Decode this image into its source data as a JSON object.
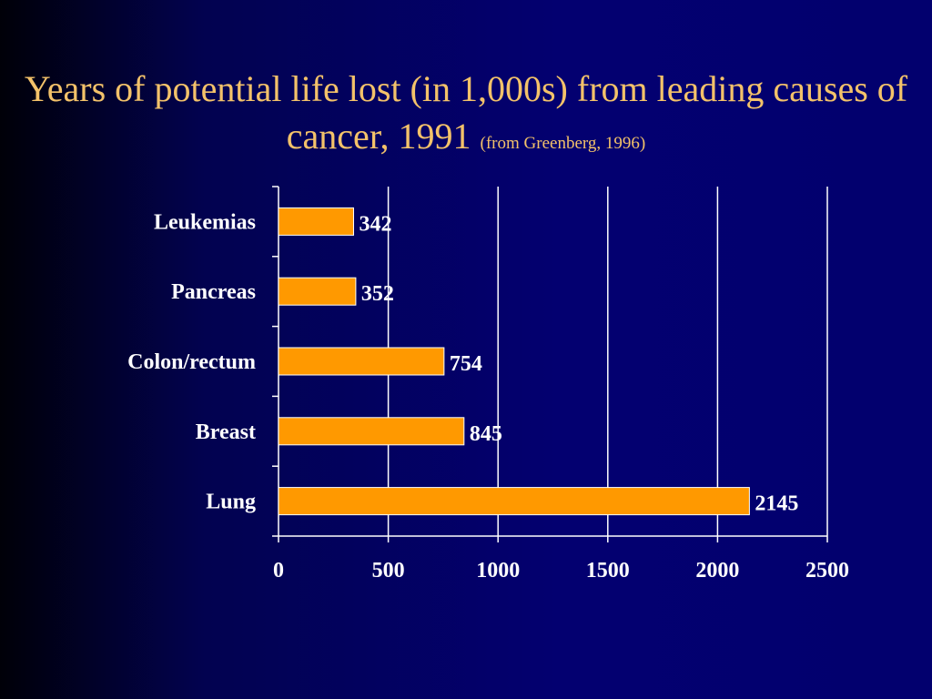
{
  "slide": {
    "title": "Years of potential life lost (in 1,000s) from leading causes of cancer, 1991",
    "source_note": "(from Greenberg, 1996)"
  },
  "colors": {
    "background": "#02006e",
    "title": "#f3c26a",
    "bar_fill": "#ff9900",
    "bar_stroke": "#ffffff",
    "gridline": "#ffffff",
    "text": "#ffffff"
  },
  "chart_data": {
    "type": "bar",
    "orientation": "horizontal",
    "title": "Years of potential life lost (in 1,000s) from leading causes of cancer, 1991",
    "subtitle": "(from Greenberg, 1996)",
    "categories": [
      "Leukemias",
      "Pancreas",
      "Colon/rectum",
      "Breast",
      "Lung"
    ],
    "values": [
      342,
      352,
      754,
      845,
      2145
    ],
    "data_labels": [
      "342",
      "352",
      "754",
      "845",
      "2145"
    ],
    "xlim": [
      0,
      2500
    ],
    "x_ticks": [
      0,
      500,
      1000,
      1500,
      2000,
      2500
    ],
    "x_tick_labels": [
      "0",
      "500",
      "1000",
      "1500",
      "2000",
      "2500"
    ],
    "xlabel": "",
    "ylabel": "",
    "grid": true,
    "legend": false
  }
}
